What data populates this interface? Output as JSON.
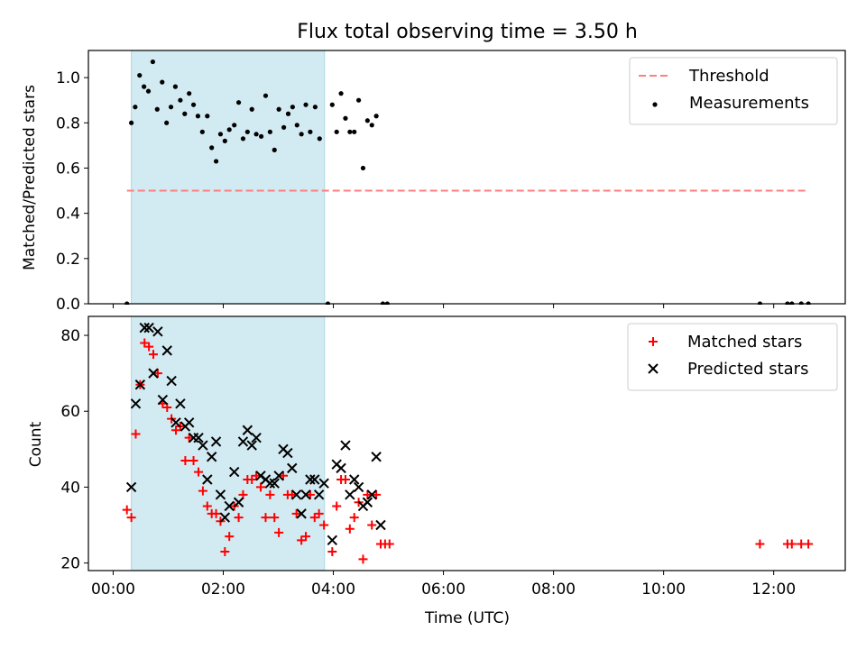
{
  "chart_data": [
    {
      "type": "scatter",
      "title": "Flux total observing time = 3.50 h",
      "ylabel": "Matched/Predicted stars",
      "xlabel": "",
      "xlim": [
        -0.45,
        13.3
      ],
      "ylim": [
        0,
        1.12
      ],
      "xticks": [
        0,
        2,
        4,
        6,
        8,
        10,
        12
      ],
      "yticks": [
        0.0,
        0.2,
        0.4,
        0.6,
        0.8,
        1.0
      ],
      "ytick_labels": [
        "0.0",
        "0.2",
        "0.4",
        "0.6",
        "0.8",
        "1.0"
      ],
      "shaded_span": [
        0.33,
        3.84
      ],
      "shaded_color": "#add8e6",
      "legend_position": "top-right",
      "threshold": {
        "name": "Threshold",
        "value": 0.5,
        "x_range": [
          0.25,
          12.6
        ],
        "color": "#ff7f7f",
        "style": "dashed"
      },
      "series": [
        {
          "name": "Measurements",
          "color": "#000000",
          "marker": "dot",
          "points": [
            [
              0.25,
              0.0
            ],
            [
              0.33,
              0.8
            ],
            [
              0.4,
              0.87
            ],
            [
              0.48,
              1.01
            ],
            [
              0.56,
              0.96
            ],
            [
              0.64,
              0.94
            ],
            [
              0.72,
              1.07
            ],
            [
              0.8,
              0.86
            ],
            [
              0.89,
              0.98
            ],
            [
              0.97,
              0.8
            ],
            [
              1.05,
              0.87
            ],
            [
              1.13,
              0.96
            ],
            [
              1.22,
              0.9
            ],
            [
              1.3,
              0.84
            ],
            [
              1.38,
              0.93
            ],
            [
              1.46,
              0.88
            ],
            [
              1.54,
              0.83
            ],
            [
              1.62,
              0.76
            ],
            [
              1.71,
              0.83
            ],
            [
              1.79,
              0.69
            ],
            [
              1.87,
              0.63
            ],
            [
              1.95,
              0.75
            ],
            [
              2.03,
              0.72
            ],
            [
              2.11,
              0.77
            ],
            [
              2.2,
              0.79
            ],
            [
              2.28,
              0.89
            ],
            [
              2.36,
              0.73
            ],
            [
              2.44,
              0.76
            ],
            [
              2.52,
              0.86
            ],
            [
              2.6,
              0.75
            ],
            [
              2.69,
              0.74
            ],
            [
              2.77,
              0.92
            ],
            [
              2.85,
              0.76
            ],
            [
              2.93,
              0.68
            ],
            [
              3.01,
              0.86
            ],
            [
              3.1,
              0.78
            ],
            [
              3.18,
              0.84
            ],
            [
              3.26,
              0.87
            ],
            [
              3.34,
              0.79
            ],
            [
              3.42,
              0.75
            ],
            [
              3.5,
              0.88
            ],
            [
              3.58,
              0.76
            ],
            [
              3.67,
              0.87
            ],
            [
              3.75,
              0.73
            ],
            [
              3.9,
              0.0
            ],
            [
              3.98,
              0.88
            ],
            [
              4.06,
              0.76
            ],
            [
              4.14,
              0.93
            ],
            [
              4.22,
              0.82
            ],
            [
              4.3,
              0.76
            ],
            [
              4.38,
              0.76
            ],
            [
              4.46,
              0.9
            ],
            [
              4.54,
              0.6
            ],
            [
              4.62,
              0.81
            ],
            [
              4.7,
              0.79
            ],
            [
              4.78,
              0.83
            ],
            [
              4.9,
              0.0
            ],
            [
              4.98,
              0.0
            ],
            [
              11.75,
              0.0
            ],
            [
              12.25,
              0.0
            ],
            [
              12.33,
              0.0
            ],
            [
              12.5,
              0.0
            ],
            [
              12.63,
              0.0
            ]
          ]
        }
      ]
    },
    {
      "type": "scatter",
      "title": "",
      "ylabel": "Count",
      "xlabel": "Time (UTC)",
      "xlim": [
        -0.45,
        13.3
      ],
      "ylim": [
        18,
        85
      ],
      "xticks": [
        0,
        2,
        4,
        6,
        8,
        10,
        12
      ],
      "xtick_labels": [
        "00:00",
        "02:00",
        "04:00",
        "06:00",
        "08:00",
        "10:00",
        "12:00"
      ],
      "yticks": [
        20,
        40,
        60,
        80
      ],
      "ytick_labels": [
        "20",
        "40",
        "60",
        "80"
      ],
      "shaded_span": [
        0.33,
        3.84
      ],
      "shaded_color": "#add8e6",
      "legend_position": "top-right",
      "series": [
        {
          "name": "Matched stars",
          "color": "#ff0000",
          "marker": "plus",
          "points": [
            [
              0.25,
              34
            ],
            [
              0.33,
              32
            ],
            [
              0.41,
              54
            ],
            [
              0.49,
              67
            ],
            [
              0.57,
              78
            ],
            [
              0.65,
              77
            ],
            [
              0.73,
              75
            ],
            [
              0.81,
              70
            ],
            [
              0.9,
              62
            ],
            [
              0.98,
              61
            ],
            [
              1.06,
              58
            ],
            [
              1.14,
              55
            ],
            [
              1.22,
              56
            ],
            [
              1.31,
              47
            ],
            [
              1.38,
              53
            ],
            [
              1.46,
              47
            ],
            [
              1.55,
              44
            ],
            [
              1.63,
              39
            ],
            [
              1.71,
              35
            ],
            [
              1.79,
              33
            ],
            [
              1.87,
              33
            ],
            [
              1.95,
              31
            ],
            [
              2.03,
              23
            ],
            [
              2.11,
              27
            ],
            [
              2.2,
              35
            ],
            [
              2.28,
              32
            ],
            [
              2.36,
              38
            ],
            [
              2.44,
              42
            ],
            [
              2.52,
              42
            ],
            [
              2.6,
              43
            ],
            [
              2.68,
              40
            ],
            [
              2.77,
              32
            ],
            [
              2.85,
              38
            ],
            [
              2.93,
              32
            ],
            [
              3.01,
              28
            ],
            [
              3.09,
              43
            ],
            [
              3.17,
              38
            ],
            [
              3.25,
              38
            ],
            [
              3.33,
              33
            ],
            [
              3.42,
              26
            ],
            [
              3.5,
              27
            ],
            [
              3.58,
              38
            ],
            [
              3.66,
              32
            ],
            [
              3.74,
              33
            ],
            [
              3.83,
              30
            ],
            [
              3.98,
              23
            ],
            [
              4.06,
              35
            ],
            [
              4.14,
              42
            ],
            [
              4.22,
              42
            ],
            [
              4.3,
              29
            ],
            [
              4.38,
              32
            ],
            [
              4.46,
              36
            ],
            [
              4.54,
              21
            ],
            [
              4.62,
              38
            ],
            [
              4.7,
              30
            ],
            [
              4.78,
              38
            ],
            [
              4.86,
              25
            ],
            [
              4.94,
              25
            ],
            [
              5.02,
              25
            ],
            [
              11.75,
              25
            ],
            [
              12.25,
              25
            ],
            [
              12.33,
              25
            ],
            [
              12.5,
              25
            ],
            [
              12.63,
              25
            ]
          ]
        },
        {
          "name": "Predicted stars",
          "color": "#000000",
          "marker": "x",
          "points": [
            [
              0.33,
              40
            ],
            [
              0.41,
              62
            ],
            [
              0.49,
              67
            ],
            [
              0.57,
              82
            ],
            [
              0.65,
              82
            ],
            [
              0.73,
              70
            ],
            [
              0.81,
              81
            ],
            [
              0.9,
              63
            ],
            [
              0.98,
              76
            ],
            [
              1.06,
              68
            ],
            [
              1.14,
              57
            ],
            [
              1.22,
              62
            ],
            [
              1.31,
              56
            ],
            [
              1.38,
              57
            ],
            [
              1.46,
              53
            ],
            [
              1.55,
              53
            ],
            [
              1.63,
              51
            ],
            [
              1.71,
              42
            ],
            [
              1.79,
              48
            ],
            [
              1.87,
              52
            ],
            [
              1.95,
              38
            ],
            [
              2.03,
              32
            ],
            [
              2.11,
              35
            ],
            [
              2.2,
              44
            ],
            [
              2.28,
              36
            ],
            [
              2.36,
              52
            ],
            [
              2.44,
              55
            ],
            [
              2.52,
              51
            ],
            [
              2.6,
              53
            ],
            [
              2.68,
              43
            ],
            [
              2.77,
              42
            ],
            [
              2.85,
              41
            ],
            [
              2.93,
              41
            ],
            [
              3.01,
              43
            ],
            [
              3.09,
              50
            ],
            [
              3.17,
              49
            ],
            [
              3.25,
              45
            ],
            [
              3.33,
              38
            ],
            [
              3.42,
              33
            ],
            [
              3.5,
              38
            ],
            [
              3.58,
              42
            ],
            [
              3.66,
              42
            ],
            [
              3.74,
              38
            ],
            [
              3.83,
              41
            ],
            [
              3.98,
              26
            ],
            [
              4.06,
              46
            ],
            [
              4.14,
              45
            ],
            [
              4.22,
              51
            ],
            [
              4.3,
              38
            ],
            [
              4.38,
              42
            ],
            [
              4.46,
              40
            ],
            [
              4.54,
              35
            ],
            [
              4.62,
              36
            ],
            [
              4.7,
              38
            ],
            [
              4.78,
              48
            ],
            [
              4.86,
              30
            ]
          ]
        }
      ]
    }
  ]
}
